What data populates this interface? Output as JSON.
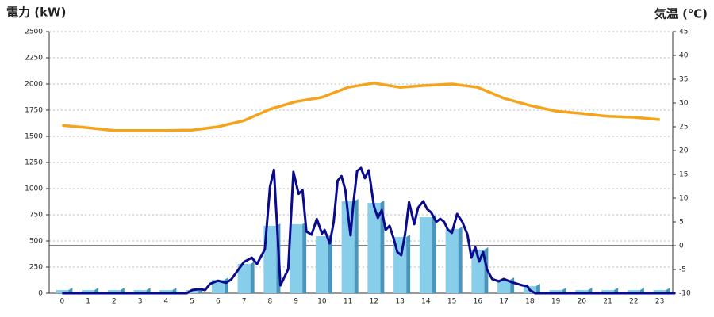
{
  "chart_data": {
    "type": "bar",
    "title_left": "電力 (kW)",
    "title_left_color": "#1f5fa8",
    "title_right": "気温 (℃)",
    "title_right_color": "#e8882a",
    "categories": [
      "0",
      "1",
      "2",
      "3",
      "4",
      "5",
      "6",
      "7",
      "8",
      "9",
      "10",
      "11",
      "12",
      "13",
      "14",
      "15",
      "16",
      "17",
      "18",
      "19",
      "20",
      "21",
      "22",
      "23"
    ],
    "values": [
      30,
      30,
      30,
      30,
      30,
      30,
      129,
      280,
      644,
      660,
      545,
      879,
      864,
      538,
      727,
      614,
      417,
      129,
      68,
      30,
      30,
      30,
      30,
      30
    ],
    "color": "#87ceeb",
    "side_color": "#4a95bb",
    "power_line": {
      "color": "#0a0a8c",
      "x": [
        0,
        4.8,
        5.0,
        5.3,
        5.5,
        5.7,
        6.0,
        6.3,
        6.5,
        7.0,
        7.3,
        7.5,
        7.8,
        8.0,
        8.15,
        8.4,
        8.7,
        8.9,
        9.1,
        9.25,
        9.4,
        9.6,
        9.8,
        10.0,
        10.1,
        10.3,
        10.45,
        10.6,
        10.75,
        10.9,
        11.0,
        11.1,
        11.2,
        11.35,
        11.5,
        11.65,
        11.8,
        12.0,
        12.15,
        12.3,
        12.45,
        12.6,
        12.75,
        12.9,
        13.05,
        13.2,
        13.35,
        13.55,
        13.7,
        13.9,
        14.05,
        14.2,
        14.4,
        14.55,
        14.7,
        14.85,
        15.0,
        15.2,
        15.4,
        15.6,
        15.75,
        15.9,
        16.05,
        16.2,
        16.35,
        16.55,
        16.8,
        17.0,
        17.3,
        17.5,
        17.7,
        17.9,
        18.0,
        18.2,
        23.6
      ],
      "values": [
        0,
        0,
        30,
        40,
        30,
        91,
        120,
        100,
        130,
        300,
        340,
        280,
        420,
        1020,
        1180,
        75,
        230,
        1160,
        950,
        985,
        590,
        560,
        710,
        570,
        605,
        477,
        680,
        1075,
        1120,
        985,
        757,
        553,
        840,
        1167,
        1197,
        1100,
        1175,
        833,
        720,
        795,
        605,
        645,
        530,
        394,
        364,
        568,
        871,
        660,
        818,
        879,
        803,
        773,
        682,
        712,
        682,
        606,
        576,
        758,
        682,
        560,
        341,
        439,
        303,
        394,
        227,
        136,
        114,
        136,
        106,
        91,
        76,
        68,
        30,
        0,
        0
      ]
    },
    "temperature": {
      "axis": "y2",
      "color": "#f5a31a",
      "values": [
        25.3,
        24.8,
        24.2,
        24.2,
        24.2,
        24.3,
        25.0,
        26.3,
        28.7,
        30.3,
        31.2,
        33.3,
        34.2,
        33.3,
        33.7,
        34.0,
        33.3,
        31.0,
        29.5,
        28.3,
        27.8,
        27.2,
        27.0,
        26.5
      ]
    },
    "ylim": [
      0,
      2500
    ],
    "yticks": [
      0,
      250,
      500,
      750,
      1000,
      1250,
      1500,
      1750,
      2000,
      2250,
      2500
    ],
    "y2lim": [
      -10,
      45
    ],
    "y2ticks": [
      -10,
      -5,
      0,
      5,
      10,
      15,
      20,
      25,
      30,
      35,
      40,
      45
    ],
    "y2_reference_line": 0,
    "grid": true
  }
}
